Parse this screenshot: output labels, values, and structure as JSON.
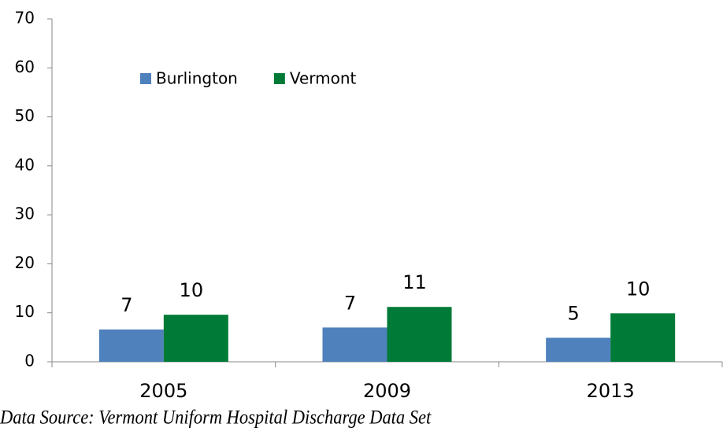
{
  "chart_data": {
    "type": "bar",
    "categories": [
      "2005",
      "2009",
      "2013"
    ],
    "series": [
      {
        "name": "Burlington",
        "color": "#4f81bd",
        "values": [
          6.6,
          7.0,
          4.9
        ],
        "value_labels": [
          "7",
          "7",
          "5"
        ]
      },
      {
        "name": "Vermont",
        "color": "#007a37",
        "values": [
          9.6,
          11.2,
          9.9
        ],
        "value_labels": [
          "10",
          "11",
          "10"
        ]
      }
    ],
    "ylim": [
      0,
      70
    ],
    "yticks": [
      0,
      10,
      20,
      30,
      40,
      50,
      60,
      70
    ],
    "grid": false,
    "legend": "top-left",
    "source": "Data Source: Vermont Uniform Hospital Discharge Data Set"
  }
}
